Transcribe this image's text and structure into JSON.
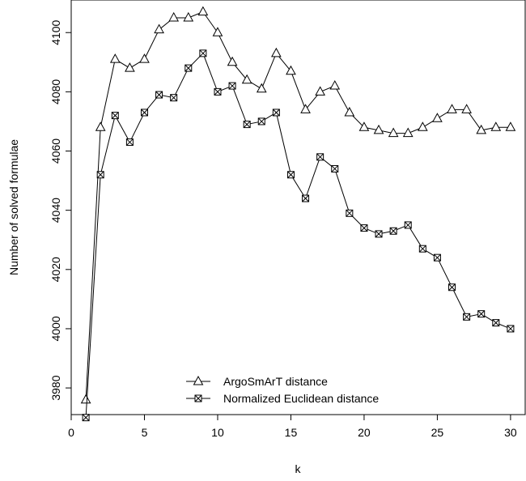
{
  "chart_data": {
    "type": "line",
    "title": "",
    "xlabel": "k",
    "ylabel": "Number of solved formulae",
    "xlim": [
      0,
      31
    ],
    "ylim": [
      3971,
      4111
    ],
    "xticks": [
      0,
      5,
      10,
      15,
      20,
      25,
      30
    ],
    "yticks": [
      3980,
      4000,
      4020,
      4040,
      4060,
      4080,
      4100
    ],
    "grid": false,
    "legend_position": "bottom-center",
    "x": [
      1,
      2,
      3,
      4,
      5,
      6,
      7,
      8,
      9,
      10,
      11,
      12,
      13,
      14,
      15,
      16,
      17,
      18,
      19,
      20,
      21,
      22,
      23,
      24,
      25,
      26,
      27,
      28,
      29,
      30
    ],
    "series": [
      {
        "name": "ArgoSmArT distance",
        "marker": "triangle-icon",
        "values": [
          3976,
          4068,
          4091,
          4088,
          4091,
          4101,
          4105,
          4105,
          4107,
          4100,
          4090,
          4084,
          4081,
          4093,
          4087,
          4074,
          4080,
          4082,
          4073,
          4068,
          4067,
          4066,
          4066,
          4068,
          4071,
          4074,
          4074,
          4067,
          4068,
          4068
        ]
      },
      {
        "name": "Normalized Euclidean distance",
        "marker": "crossed-square-icon",
        "values": [
          3970,
          4052,
          4072,
          4063,
          4073,
          4079,
          4078,
          4088,
          4093,
          4080,
          4082,
          4069,
          4070,
          4073,
          4052,
          4044,
          4058,
          4054,
          4039,
          4034,
          4032,
          4033,
          4035,
          4027,
          4024,
          4014,
          4004,
          4005,
          4002,
          4000
        ]
      }
    ]
  }
}
